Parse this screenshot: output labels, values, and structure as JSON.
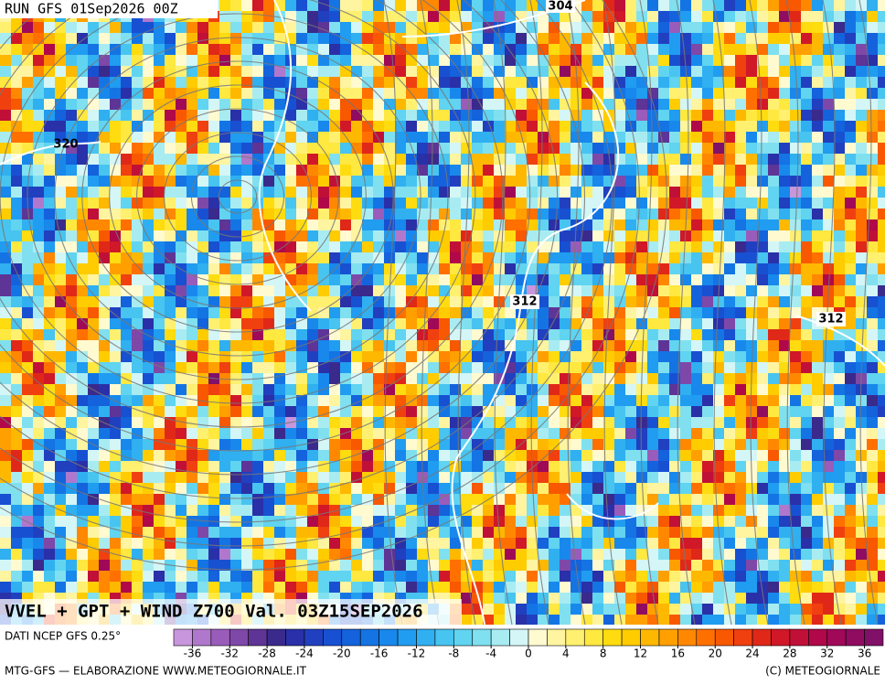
{
  "run": "RUN GFS 01Sep2026 00Z",
  "title": "VVEL + GPT + WIND Z700 Val. 03Z15SEP2026",
  "contour_labels": [
    "304",
    "320",
    "312",
    "312"
  ],
  "source": "DATI NCEP GFS 0.25°",
  "footer_left": "MTG-GFS — ELABORAZIONE WWW.METEOGIORNALE.IT",
  "footer_right": "(C) METEOGIORNALE",
  "colorbar": {
    "lim": [
      -38,
      38
    ],
    "ticks": [
      -36,
      -32,
      -28,
      -24,
      -20,
      -16,
      -12,
      -8,
      -4,
      0,
      4,
      8,
      12,
      16,
      20,
      24,
      28,
      32,
      36
    ],
    "colors": [
      "#c896dc",
      "#b078cc",
      "#9a5cba",
      "#7e48a8",
      "#5e3496",
      "#3a2a8c",
      "#2a30a8",
      "#2040c0",
      "#1850d2",
      "#1462dc",
      "#1474e4",
      "#1888ec",
      "#209cf0",
      "#30b0f0",
      "#48c4f0",
      "#60d4f0",
      "#80e0f0",
      "#a8ecf2",
      "#d4f6f6",
      "#fffad0",
      "#fff4a0",
      "#fff070",
      "#ffe840",
      "#ffdc10",
      "#ffcc00",
      "#ffb800",
      "#ffa000",
      "#ff8800",
      "#ff7000",
      "#f85800",
      "#f04010",
      "#e02818",
      "#d01828",
      "#c01038",
      "#b00848",
      "#a00858",
      "#900c60",
      "#801068"
    ]
  }
}
